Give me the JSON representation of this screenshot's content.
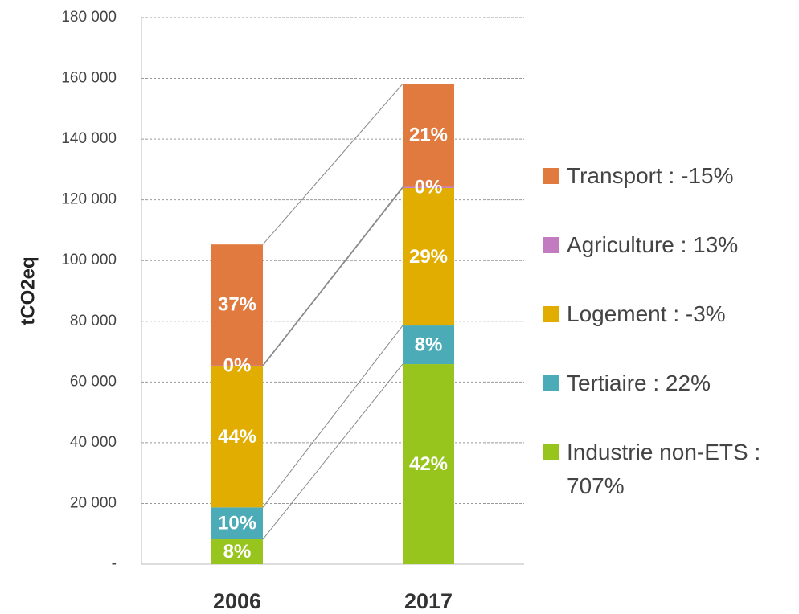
{
  "chart_data": {
    "type": "stacked_bar",
    "y_label": "tCO2eq",
    "categories": [
      "2006",
      "2017"
    ],
    "series": [
      {
        "name": "Industrie non-ETS : 707%",
        "color": "#97c51e",
        "values": [
          8200,
          65900
        ],
        "percent_labels": [
          "8%",
          "42%"
        ]
      },
      {
        "name": "Tertiaire : 22%",
        "color": "#4bacb8",
        "values": [
          10500,
          12700
        ],
        "percent_labels": [
          "10%",
          "8%"
        ]
      },
      {
        "name": "Logement : -3%",
        "color": "#e0ad00",
        "values": [
          46500,
          45300
        ],
        "percent_labels": [
          "44%",
          "29%"
        ]
      },
      {
        "name": "Agriculture : 13%",
        "color": "#c27bbf",
        "values": [
          300,
          400
        ],
        "percent_labels": [
          "0%",
          "0%"
        ]
      },
      {
        "name": "Transport : -15%",
        "color": "#e07a3e",
        "values": [
          39800,
          33900
        ],
        "percent_labels": [
          "37%",
          "21%"
        ]
      }
    ],
    "ylim": [
      0,
      180000
    ],
    "yticks": [
      {
        "value": 0,
        "label": "-"
      },
      {
        "value": 20000,
        "label": "20 000"
      },
      {
        "value": 40000,
        "label": "40 000"
      },
      {
        "value": 60000,
        "label": "60 000"
      },
      {
        "value": 80000,
        "label": "80 000"
      },
      {
        "value": 100000,
        "label": "100 000"
      },
      {
        "value": 120000,
        "label": "120 000"
      },
      {
        "value": 140000,
        "label": "140 000"
      },
      {
        "value": 160000,
        "label": "160 000"
      },
      {
        "value": 180000,
        "label": "180 000"
      }
    ],
    "grid": true,
    "connectors": true
  }
}
